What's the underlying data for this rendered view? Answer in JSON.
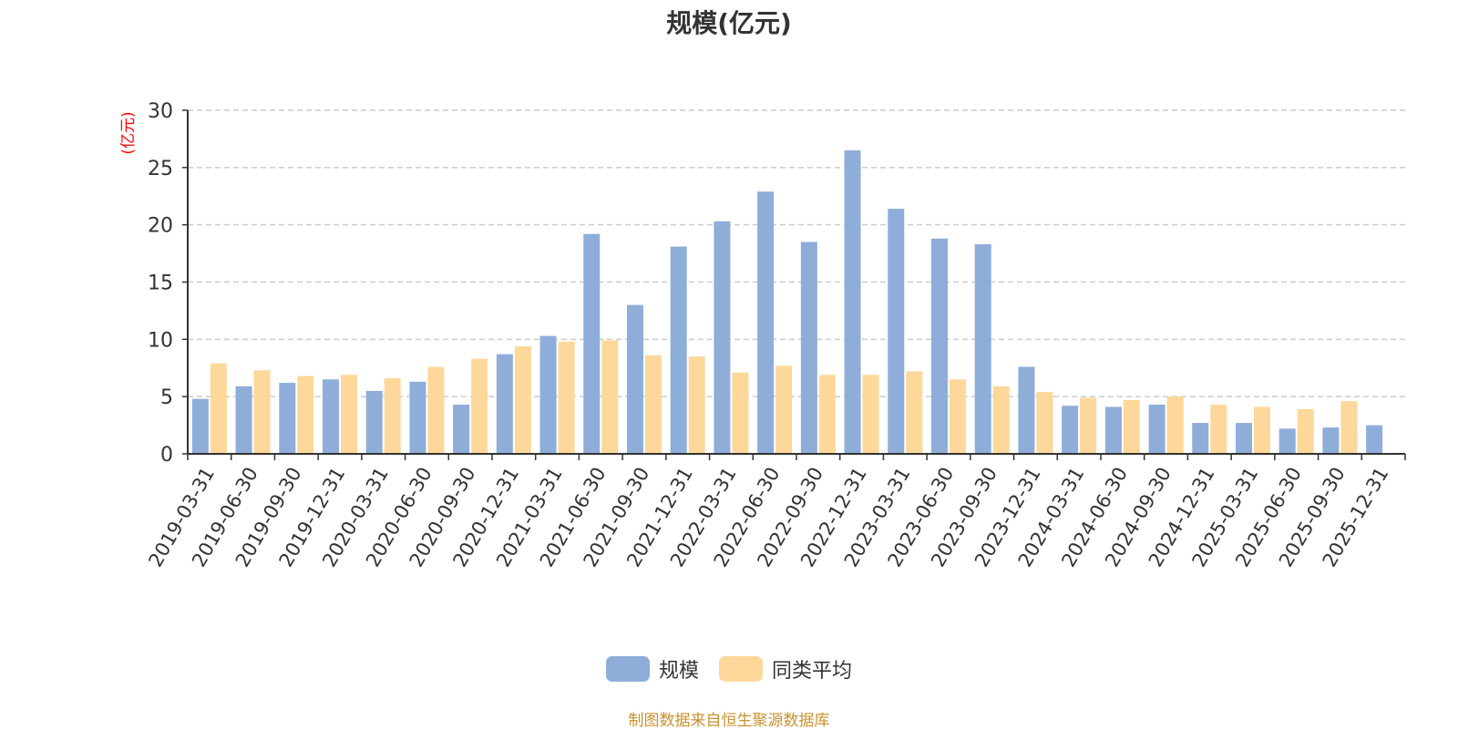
{
  "chart_data": {
    "type": "bar",
    "title": "规模(亿元)",
    "ylabel": "(亿元)",
    "xlabel": "",
    "ylim": [
      0,
      30
    ],
    "yticks": [
      0,
      5,
      10,
      15,
      20,
      25,
      30
    ],
    "grid": true,
    "legend_position": "bottom-center",
    "categories": [
      "2019-03-31",
      "2019-06-30",
      "2019-09-30",
      "2019-12-31",
      "2020-03-31",
      "2020-06-30",
      "2020-09-30",
      "2020-12-31",
      "2021-03-31",
      "2021-06-30",
      "2021-09-30",
      "2021-12-31",
      "2022-03-31",
      "2022-06-30",
      "2022-09-30",
      "2022-12-31",
      "2023-03-31",
      "2023-06-30",
      "2023-09-30",
      "2023-12-31",
      "2024-03-31",
      "2024-06-30",
      "2024-09-30",
      "2024-12-31",
      "2025-03-31",
      "2025-06-30",
      "2025-09-30",
      "2025-12-31"
    ],
    "series": [
      {
        "name": "规模",
        "color": "#8eadd9",
        "values": [
          4.8,
          5.9,
          6.2,
          6.5,
          5.5,
          6.3,
          4.3,
          8.7,
          10.3,
          19.2,
          13.0,
          18.1,
          20.3,
          22.9,
          18.5,
          26.5,
          21.4,
          18.8,
          18.3,
          7.6,
          4.2,
          4.1,
          4.3,
          2.7,
          2.7,
          2.2,
          2.3,
          2.5
        ]
      },
      {
        "name": "同类平均",
        "color": "#fed89a",
        "values": [
          7.9,
          7.3,
          6.8,
          6.9,
          6.6,
          7.6,
          8.3,
          9.4,
          9.8,
          9.9,
          8.6,
          8.5,
          7.1,
          7.7,
          6.9,
          6.9,
          7.2,
          6.5,
          5.9,
          5.4,
          4.9,
          4.7,
          5.0,
          4.3,
          4.1,
          3.9,
          4.6,
          null
        ]
      }
    ],
    "source_note": "制图数据来自恒生聚源数据库"
  },
  "colors": {
    "axis": "#333333",
    "grid": "#cccccc",
    "ylabel": "#ff0000",
    "source_note": "#c9922e"
  }
}
